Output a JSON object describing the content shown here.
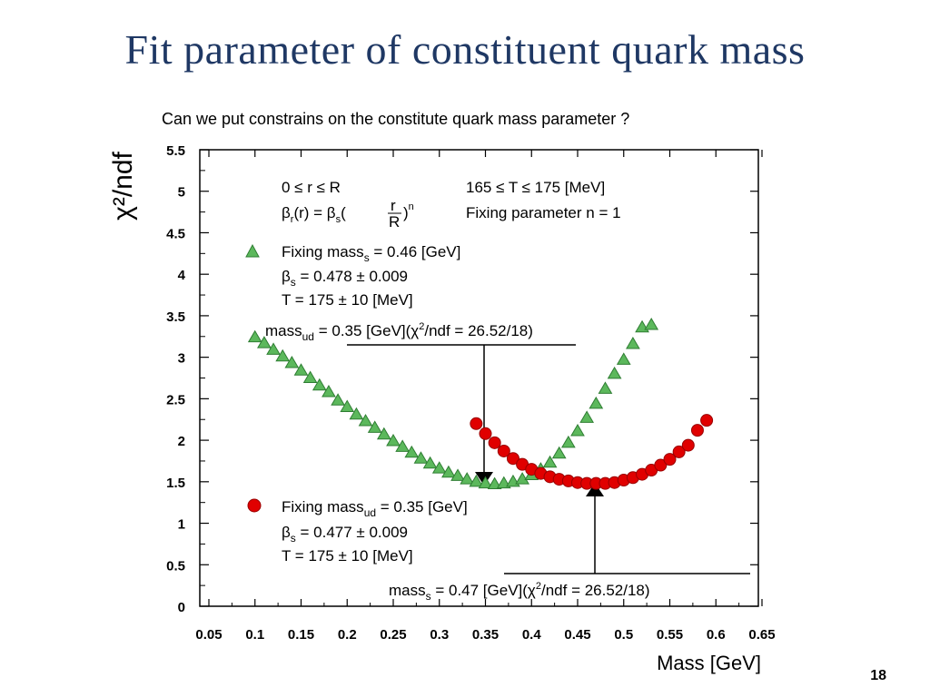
{
  "slide": {
    "title": "Fit parameter of  constituent quark mass",
    "subtitle": "Can we put constrains on the constitute quark mass parameter ?",
    "page_number": "18"
  },
  "chart_data": {
    "type": "scatter",
    "xlabel": "Mass [GeV]",
    "ylabel": "χ²/ndf",
    "xlim": [
      0.05,
      0.65
    ],
    "ylim": [
      0,
      5.5
    ],
    "xticks": [
      "0.05",
      "0.1",
      "0.15",
      "0.2",
      "0.25",
      "0.3",
      "0.35",
      "0.4",
      "0.45",
      "0.5",
      "0.55",
      "0.6",
      "0.65"
    ],
    "yticks": [
      "0",
      "0.5",
      "1",
      "1.5",
      "2",
      "2.5",
      "3",
      "3.5",
      "4",
      "4.5",
      "5",
      "5.5"
    ],
    "grid": false,
    "annotations": {
      "range_r": "0 ≤ r ≤ R",
      "range_T": "165 ≤ T ≤ 175 [MeV]",
      "beta_formula": "βr(r) = βs(r/R)^n",
      "fixing_n": "Fixing parameter n = 1",
      "green_label": "Fixing mass_s = 0.46 [GeV]",
      "green_beta": "β_s = 0.478 ± 0.009",
      "green_T": "T = 175 ± 10 [MeV]",
      "green_result": "mass_ud = 0.35 [GeV](χ²/ndf = 26.52/18)",
      "red_label": "Fixing mass_ud = 0.35 [GeV]",
      "red_beta": "β_s = 0.477 ± 0.009",
      "red_T": "T = 175 ± 10 [MeV]",
      "red_result": "mass_s = 0.47 [GeV](χ²/ndf = 26.52/18)"
    },
    "series": [
      {
        "marker": "triangle",
        "color": "#5cb85c",
        "x": [
          0.1,
          0.11,
          0.12,
          0.13,
          0.14,
          0.15,
          0.16,
          0.17,
          0.18,
          0.19,
          0.2,
          0.21,
          0.22,
          0.23,
          0.24,
          0.25,
          0.26,
          0.27,
          0.28,
          0.29,
          0.3,
          0.31,
          0.32,
          0.33,
          0.34,
          0.35,
          0.36,
          0.37,
          0.38,
          0.39,
          0.4,
          0.41,
          0.42,
          0.43,
          0.44,
          0.45,
          0.46,
          0.47,
          0.48,
          0.49,
          0.5,
          0.51,
          0.52,
          0.53
        ],
        "y": [
          3.24,
          3.17,
          3.09,
          3.01,
          2.93,
          2.84,
          2.75,
          2.66,
          2.58,
          2.48,
          2.4,
          2.31,
          2.23,
          2.15,
          2.07,
          1.99,
          1.92,
          1.85,
          1.78,
          1.72,
          1.66,
          1.61,
          1.57,
          1.53,
          1.5,
          1.48,
          1.47,
          1.48,
          1.5,
          1.53,
          1.58,
          1.65,
          1.73,
          1.84,
          1.97,
          2.11,
          2.27,
          2.44,
          2.62,
          2.8,
          2.97,
          3.16,
          3.36,
          3.39
        ]
      },
      {
        "marker": "circle",
        "color": "#e00000",
        "x": [
          0.34,
          0.35,
          0.36,
          0.37,
          0.38,
          0.39,
          0.4,
          0.41,
          0.42,
          0.43,
          0.44,
          0.45,
          0.46,
          0.47,
          0.48,
          0.49,
          0.5,
          0.51,
          0.52,
          0.53,
          0.54,
          0.55,
          0.56,
          0.57,
          0.58,
          0.59
        ],
        "y": [
          2.2,
          2.08,
          1.97,
          1.87,
          1.78,
          1.71,
          1.65,
          1.6,
          1.56,
          1.53,
          1.51,
          1.49,
          1.48,
          1.48,
          1.48,
          1.49,
          1.52,
          1.55,
          1.59,
          1.64,
          1.7,
          1.77,
          1.86,
          1.94,
          2.12,
          2.24
        ]
      }
    ]
  }
}
